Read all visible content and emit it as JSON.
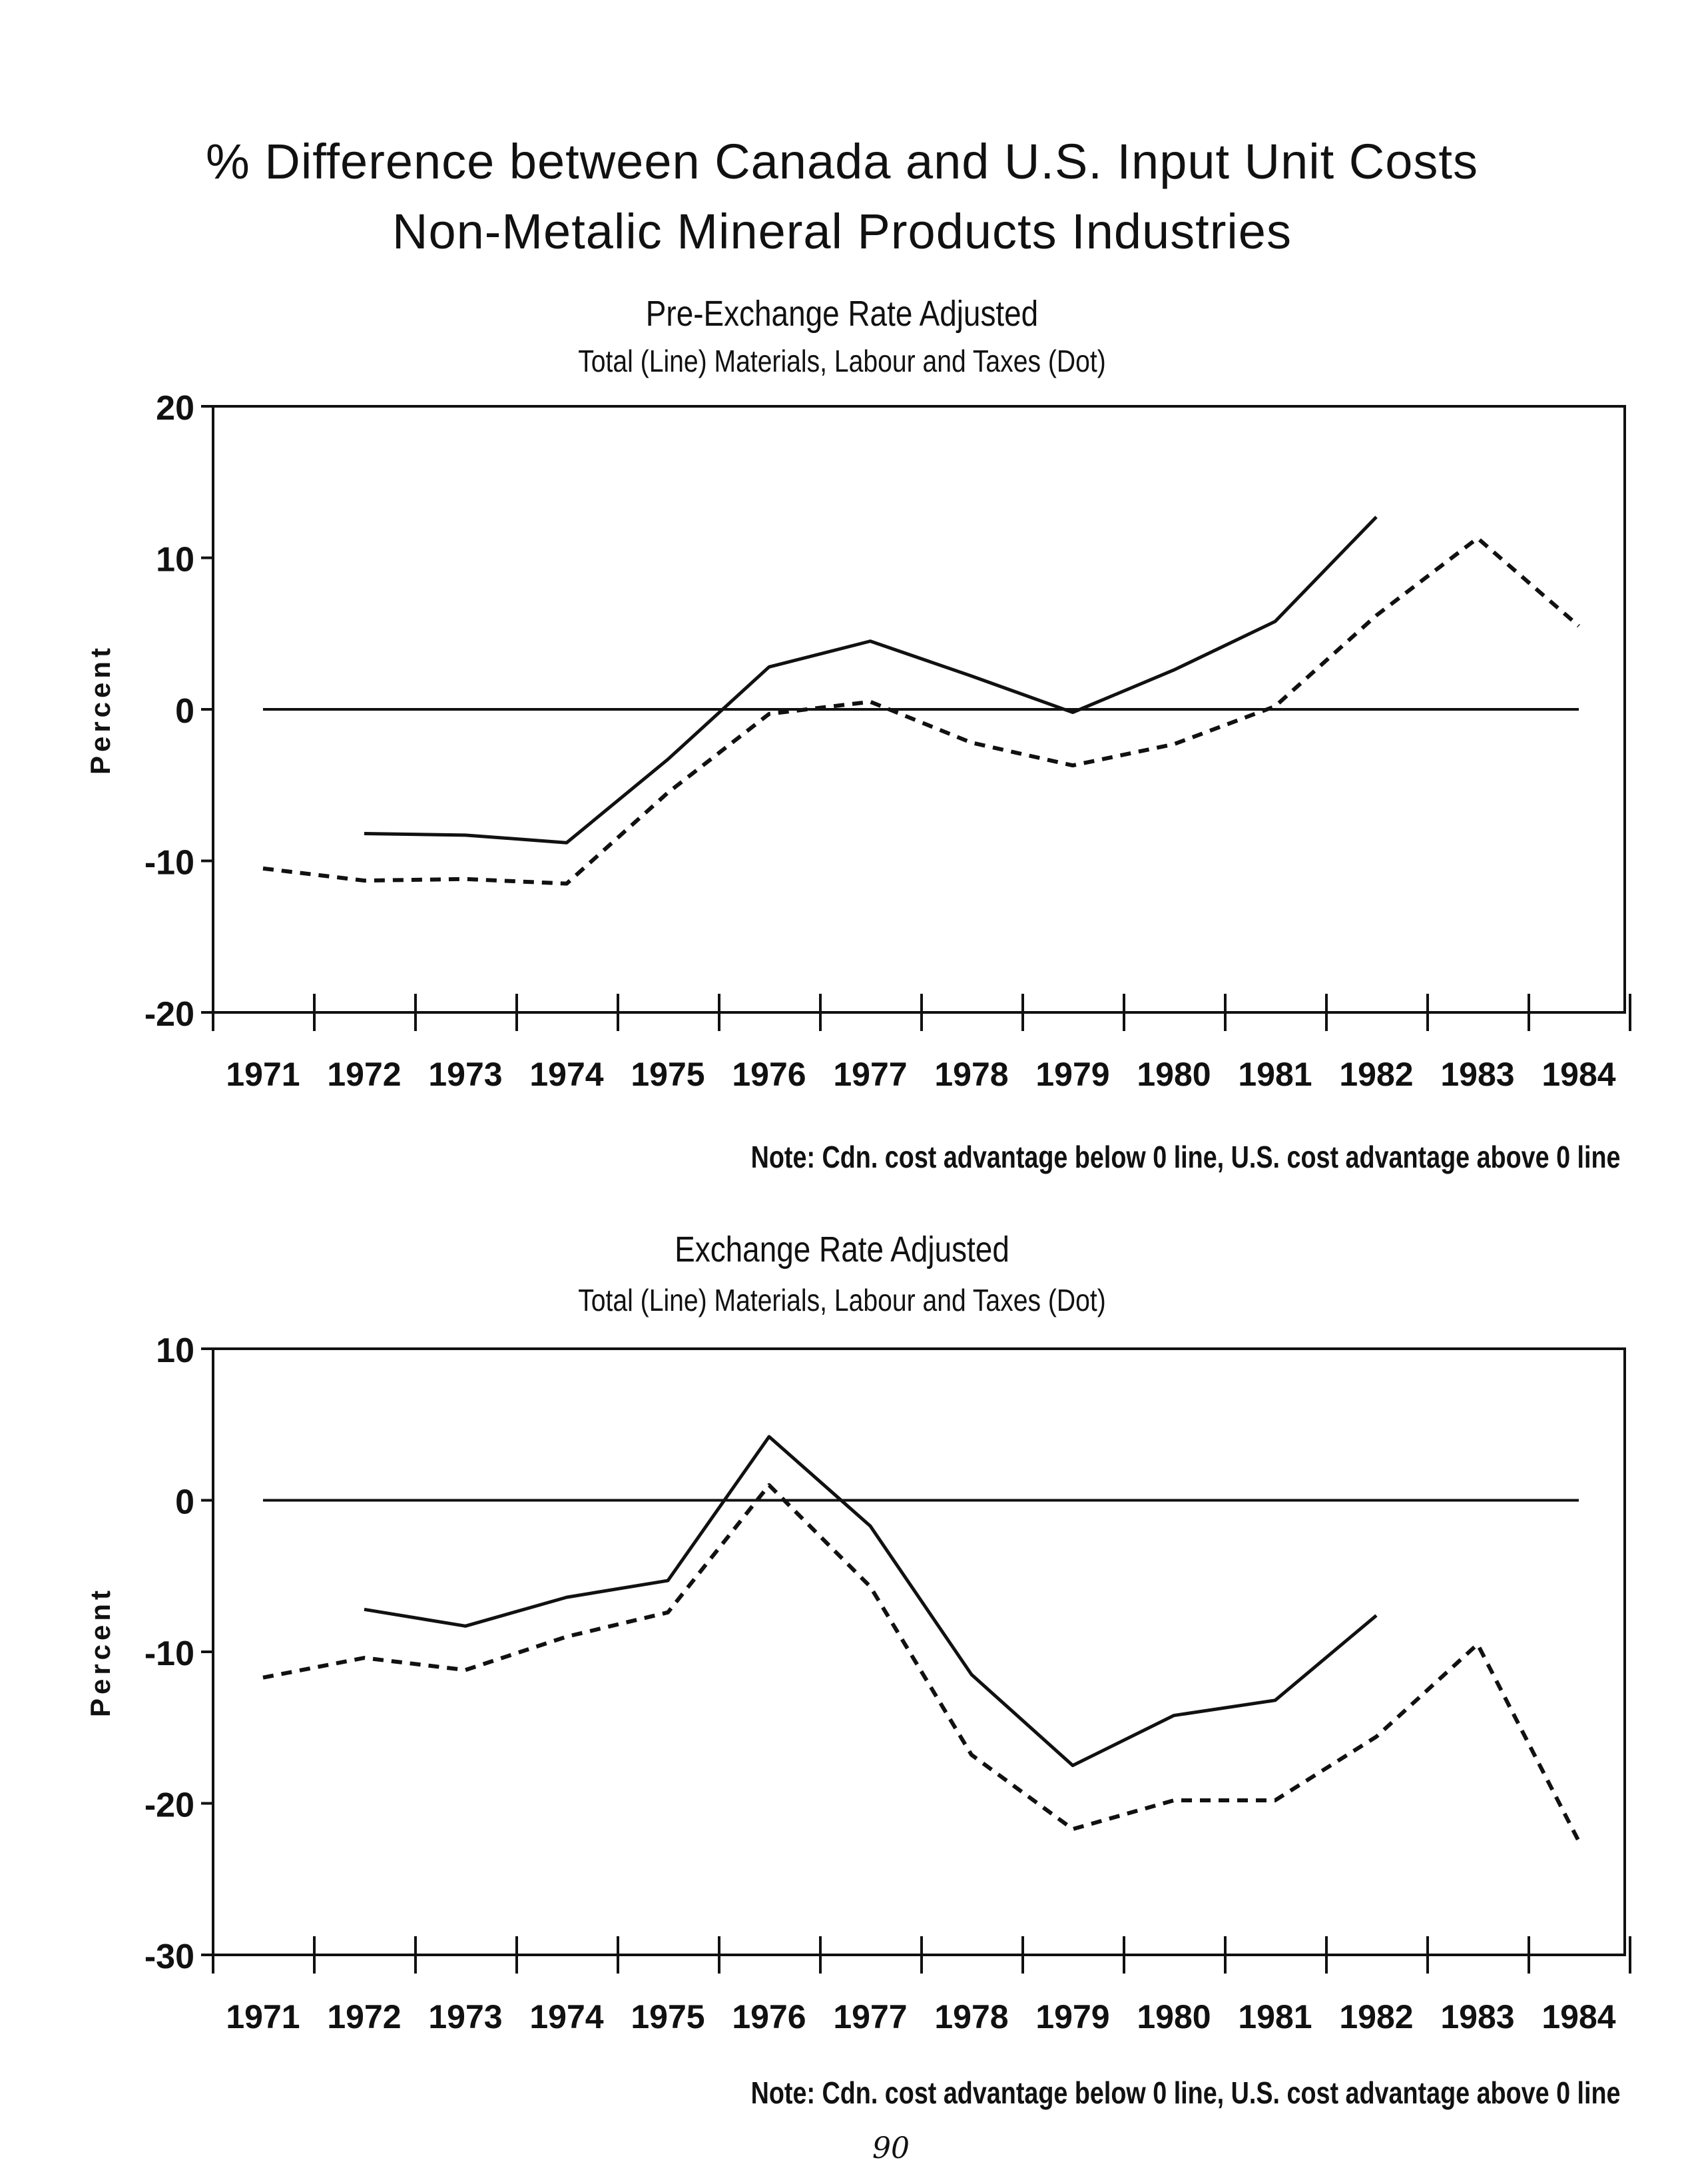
{
  "page": {
    "title_line1": "% Difference between Canada and U.S. Input Unit Costs",
    "title_line2": "Non-Metalic Mineral Products Industries",
    "page_number": "90"
  },
  "chart_data": [
    {
      "type": "line",
      "title": "Pre-Exchange Rate Adjusted",
      "subtitle": "Total (Line)   Materials, Labour and Taxes (Dot)",
      "ylabel": "Percent",
      "ylim": [
        -20,
        20
      ],
      "yticks": [
        -20,
        -10,
        0,
        10,
        20
      ],
      "x": [
        "1971",
        "1972",
        "1973",
        "1974",
        "1975",
        "1976",
        "1977",
        "1978",
        "1979",
        "1980",
        "1981",
        "1982",
        "1983",
        "1984"
      ],
      "zero_line": true,
      "note": "Note: Cdn. cost advantage below 0 line, U.S. cost advantage above 0 line",
      "series": [
        {
          "name": "Total",
          "style": "solid",
          "values": [
            null,
            -8.2,
            -8.3,
            -8.8,
            -3.3,
            2.8,
            4.5,
            2.2,
            -0.2,
            2.6,
            5.8,
            12.7,
            null,
            null
          ]
        },
        {
          "name": "Materials, Labour and Taxes",
          "style": "dotted",
          "values": [
            -10.5,
            -11.3,
            -11.2,
            -11.5,
            -5.5,
            -0.3,
            0.5,
            -2.2,
            -3.7,
            -2.3,
            0.2,
            6.2,
            11.3,
            5.5
          ]
        }
      ]
    },
    {
      "type": "line",
      "title": "Exchange Rate Adjusted",
      "subtitle": "Total (Line)   Materials, Labour and Taxes (Dot)",
      "ylabel": "Percent",
      "ylim": [
        -30,
        10
      ],
      "yticks": [
        -30,
        -20,
        -10,
        0,
        10
      ],
      "x": [
        "1971",
        "1972",
        "1973",
        "1974",
        "1975",
        "1976",
        "1977",
        "1978",
        "1979",
        "1980",
        "1981",
        "1982",
        "1983",
        "1984"
      ],
      "zero_line": true,
      "note": "Note: Cdn. cost advantage below 0 line, U.S. cost advantage above 0 line",
      "series": [
        {
          "name": "Total",
          "style": "solid",
          "values": [
            null,
            -7.2,
            -8.3,
            -6.4,
            -5.3,
            4.2,
            -1.7,
            -11.5,
            -17.5,
            -14.2,
            -13.2,
            -7.6,
            null,
            null
          ]
        },
        {
          "name": "Materials, Labour and Taxes",
          "style": "dotted",
          "values": [
            -11.7,
            -10.4,
            -11.2,
            -9.0,
            -7.4,
            1.0,
            -5.7,
            -16.8,
            -21.7,
            -19.8,
            -19.8,
            -15.6,
            -9.5,
            -22.5
          ]
        }
      ]
    }
  ]
}
